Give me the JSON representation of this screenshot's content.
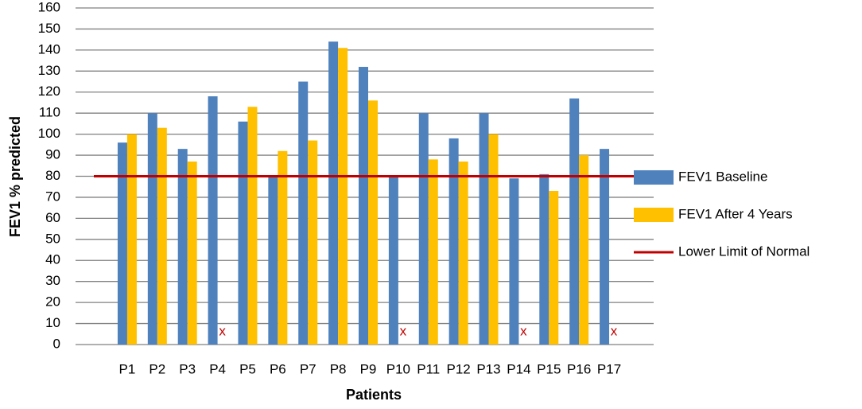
{
  "chart_data": {
    "type": "bar",
    "x_label": "Patients",
    "y_label": "FEV1 % predicted",
    "categories": [
      "P1",
      "P2",
      "P3",
      "P4",
      "P5",
      "P6",
      "P7",
      "P8",
      "P9",
      "P10",
      "P11",
      "P12",
      "P13",
      "P14",
      "P15",
      "P16",
      "P17"
    ],
    "series": [
      {
        "name": "FEV1 Baseline",
        "color": "#4f81bd",
        "values": [
          96,
          110,
          93,
          118,
          106,
          80,
          125,
          144,
          132,
          80,
          110,
          98,
          110,
          79,
          81,
          117,
          93
        ]
      },
      {
        "name": "FEV1 After 4 Years",
        "color": "#ffc000",
        "values": [
          100,
          103,
          87,
          null,
          113,
          92,
          97,
          141,
          116,
          null,
          88,
          87,
          100,
          null,
          73,
          90,
          null
        ]
      }
    ],
    "reference_line": {
      "name": "Lower Limit of Normal",
      "value": 80,
      "color": "#c00000"
    },
    "missing_marker": "x",
    "missing_color": "#c00000",
    "ylim": [
      0,
      160
    ],
    "yticks": [
      0,
      10,
      20,
      30,
      40,
      50,
      60,
      70,
      80,
      90,
      100,
      110,
      120,
      130,
      140,
      150,
      160
    ],
    "grid": true,
    "legend": "right"
  }
}
